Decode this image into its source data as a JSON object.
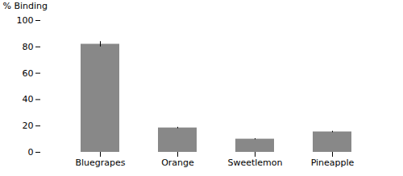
{
  "chart_data": {
    "type": "bar",
    "categories": [
      "Bluegrapes",
      "Orange",
      "Sweetlemon",
      "Pineapple"
    ],
    "values": [
      82.0,
      18.5,
      10.0,
      15.5
    ],
    "errors": [
      2.0,
      0.5,
      0.4,
      0.5
    ],
    "color": "#888888",
    "ylabel": "% Binding",
    "ylim": [
      0,
      100
    ],
    "yticks": [
      0,
      20,
      40,
      60,
      80,
      100
    ],
    "grid": false
  }
}
